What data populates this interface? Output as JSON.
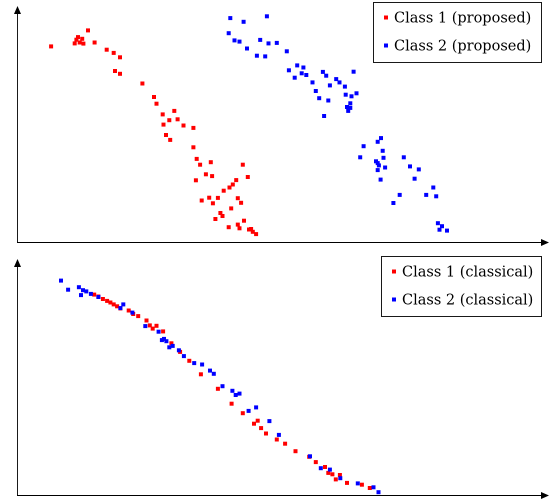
{
  "colors": {
    "class1": "#ff0000",
    "class2": "#0000ff",
    "axis": "#000000"
  },
  "chart_data": [
    {
      "type": "scatter",
      "title": "",
      "xlabel": "",
      "ylabel": "",
      "xlim": [
        0,
        100
      ],
      "ylim": [
        0,
        100
      ],
      "grid": false,
      "legend": "top-right",
      "series": [
        {
          "name": "Class 1 (proposed)",
          "color": "#ff0000",
          "points": [
            [
              5.8,
              84.3
            ],
            [
              11.5,
              85.6
            ],
            [
              11.9,
              87.2
            ],
            [
              12.3,
              88.3
            ],
            [
              12.7,
              86.0
            ],
            [
              13.3,
              87.6
            ],
            [
              13.6,
              85.5
            ],
            [
              14.7,
              91.2
            ],
            [
              16.3,
              86.0
            ],
            [
              19.2,
              82.9
            ],
            [
              20.9,
              81.5
            ],
            [
              21.2,
              73.7
            ],
            [
              22.4,
              72.5
            ],
            [
              22.4,
              79.6
            ],
            [
              27.8,
              68.3
            ],
            [
              30.6,
              62.5
            ],
            [
              31.2,
              59.6
            ],
            [
              32.7,
              55.0
            ],
            [
              32.9,
              50.6
            ],
            [
              33.5,
              46.1
            ],
            [
              34.3,
              52.5
            ],
            [
              34.5,
              44.0
            ],
            [
              35.5,
              56.5
            ],
            [
              36.3,
              52.9
            ],
            [
              37.7,
              50.2
            ],
            [
              40.1,
              49.2
            ],
            [
              40.1,
              40.8
            ],
            [
              40.7,
              26.6
            ],
            [
              40.9,
              35.8
            ],
            [
              41.7,
              33.3
            ],
            [
              42.1,
              17.9
            ],
            [
              43.1,
              29.2
            ],
            [
              43.9,
              19.1
            ],
            [
              44.3,
              34.4
            ],
            [
              44.6,
              28.4
            ],
            [
              44.8,
              16.7
            ],
            [
              45.4,
              9.9
            ],
            [
              46.0,
              19.0
            ],
            [
              46.6,
              12.5
            ],
            [
              47.1,
              11.2
            ],
            [
              47.4,
              22.1
            ],
            [
              48.6,
              6.4
            ],
            [
              48.8,
              23.5
            ],
            [
              49.2,
              14.5
            ],
            [
              49.6,
              24.8
            ],
            [
              50.4,
              26.7
            ],
            [
              50.8,
              18.9
            ],
            [
              50.8,
              7.5
            ],
            [
              51.2,
              5.9
            ],
            [
              51.6,
              16.9
            ],
            [
              52.0,
              33.3
            ],
            [
              52.3,
              9.2
            ],
            [
              53.2,
              28.0
            ],
            [
              53.5,
              5.4
            ],
            [
              54.0,
              5.6
            ],
            [
              54.4,
              4.4
            ],
            [
              55.2,
              3.4
            ]
          ]
        },
        {
          "name": "Class 2 (proposed)",
          "color": "#0000ff",
          "points": [
            [
              48.6,
              90.0
            ],
            [
              49.0,
              96.5
            ],
            [
              50.0,
              86.9
            ],
            [
              51.2,
              86.4
            ],
            [
              52.2,
              94.9
            ],
            [
              53.0,
              83.4
            ],
            [
              55.4,
              80.3
            ],
            [
              56.2,
              87.1
            ],
            [
              57.4,
              80.0
            ],
            [
              57.8,
              97.3
            ],
            [
              58.2,
              85.6
            ],
            [
              60.2,
              85.8
            ],
            [
              62.6,
              82.2
            ],
            [
              63.1,
              74.0
            ],
            [
              64.5,
              70.8
            ],
            [
              65.1,
              76.1
            ],
            [
              66.2,
              72.7
            ],
            [
              66.6,
              75.2
            ],
            [
              67.3,
              72.0
            ],
            [
              68.8,
              68.8
            ],
            [
              69.6,
              65.1
            ],
            [
              70.4,
              62.0
            ],
            [
              71.3,
              73.3
            ],
            [
              71.6,
              54.3
            ],
            [
              72.1,
              71.7
            ],
            [
              72.6,
              61.0
            ],
            [
              73.0,
              67.5
            ],
            [
              74.5,
              70.2
            ],
            [
              75.3,
              68.8
            ],
            [
              76.6,
              67.0
            ],
            [
              76.8,
              63.5
            ],
            [
              77.1,
              58.2
            ],
            [
              77.4,
              56.5
            ],
            [
              77.9,
              59.8
            ],
            [
              77.9,
              57.8
            ],
            [
              78.2,
              62.8
            ],
            [
              78.7,
              73.4
            ],
            [
              79.4,
              64.1
            ],
            [
              80.3,
              36.5
            ],
            [
              81.1,
              41.3
            ],
            [
              84.1,
              34.8
            ],
            [
              84.5,
              34.0
            ],
            [
              84.5,
              31.0
            ],
            [
              84.8,
              33.0
            ],
            [
              85.2,
              26.9
            ],
            [
              84.5,
              43.2
            ],
            [
              85.3,
              44.8
            ],
            [
              85.7,
              39.3
            ],
            [
              85.9,
              36.3
            ],
            [
              86.3,
              32.1
            ],
            [
              88.3,
              16.8
            ],
            [
              89.8,
              20.3
            ],
            [
              90.8,
              36.5
            ],
            [
              92.3,
              32.6
            ],
            [
              93.4,
              27.3
            ],
            [
              94.4,
              31.3
            ],
            [
              96.2,
              20.3
            ],
            [
              97.9,
              23.5
            ],
            [
              98.6,
              19.7
            ],
            [
              99.0,
              8.1
            ],
            [
              99.4,
              5.3
            ],
            [
              100.0,
              6.8
            ],
            [
              101.2,
              4.9
            ]
          ]
        }
      ]
    },
    {
      "type": "scatter",
      "title": "",
      "xlabel": "",
      "ylabel": "",
      "xlim": [
        0,
        100
      ],
      "ylim": [
        0,
        100
      ],
      "grid": false,
      "legend": "top-right",
      "series": [
        {
          "name": "Class 1 (classical)",
          "color": "#ff0000",
          "points": [
            [
              16.2,
              86.0
            ],
            [
              17.2,
              85.2
            ],
            [
              18.3,
              84.1
            ],
            [
              19.3,
              83.3
            ],
            [
              20.1,
              82.6
            ],
            [
              20.9,
              81.8
            ],
            [
              21.7,
              81.0
            ],
            [
              22.5,
              80.1
            ],
            [
              24.5,
              79.2
            ],
            [
              25.6,
              77.7
            ],
            [
              26.8,
              76.8
            ],
            [
              28.8,
              74.9
            ],
            [
              29.6,
              72.8
            ],
            [
              30.3,
              71.4
            ],
            [
              31.2,
              72.6
            ],
            [
              32.8,
              70.2
            ],
            [
              34.8,
              65.1
            ],
            [
              36.9,
              61.4
            ],
            [
              39.1,
              57.6
            ],
            [
              41.9,
              51.8
            ],
            [
              46.0,
              45.6
            ],
            [
              49.3,
              39.2
            ],
            [
              52.0,
              35.1
            ],
            [
              54.7,
              30.6
            ],
            [
              55.6,
              31.9
            ],
            [
              56.4,
              28.7
            ],
            [
              57.6,
              26.4
            ],
            [
              60.2,
              23.8
            ],
            [
              62.2,
              22.0
            ],
            [
              64.7,
              18.8
            ],
            [
              68.0,
              16.4
            ],
            [
              69.6,
              14.1
            ],
            [
              71.8,
              12.0
            ],
            [
              72.6,
              9.5
            ],
            [
              73.6,
              8.9
            ],
            [
              74.4,
              6.7
            ],
            [
              75.4,
              8.6
            ],
            [
              77.1,
              5.2
            ],
            [
              80.7,
              4.4
            ],
            [
              82.6,
              3.0
            ]
          ]
        },
        {
          "name": "Class 2 (classical)",
          "color": "#0000ff",
          "points": [
            [
              8.2,
              92.0
            ],
            [
              9.9,
              88.1
            ],
            [
              12.5,
              89.2
            ],
            [
              13.0,
              85.8
            ],
            [
              13.5,
              87.9
            ],
            [
              14.3,
              87.4
            ],
            [
              15.4,
              86.3
            ],
            [
              17.2,
              85.0
            ],
            [
              22.5,
              80.2
            ],
            [
              23.2,
              81.8
            ],
            [
              25.4,
              78.3
            ],
            [
              28.5,
              72.5
            ],
            [
              31.7,
              70.1
            ],
            [
              32.5,
              66.5
            ],
            [
              33.0,
              67.0
            ],
            [
              33.6,
              66.0
            ],
            [
              34.3,
              63.4
            ],
            [
              35.1,
              64.0
            ],
            [
              36.6,
              62.1
            ],
            [
              37.8,
              59.6
            ],
            [
              40.3,
              56.6
            ],
            [
              42.2,
              56.0
            ],
            [
              44.1,
              53.4
            ],
            [
              45.0,
              52.0
            ],
            [
              47.1,
              46.7
            ],
            [
              49.5,
              44.7
            ],
            [
              50.3,
              42.9
            ],
            [
              51.2,
              43.5
            ],
            [
              53.4,
              36.1
            ],
            [
              55.2,
              37.6
            ],
            [
              58.4,
              31.7
            ],
            [
              60.7,
              25.8
            ],
            [
              68.2,
              16.6
            ],
            [
              70.8,
              11.5
            ],
            [
              73.0,
              10.9
            ],
            [
              75.5,
              7.2
            ],
            [
              79.7,
              5.0
            ],
            [
              83.5,
              3.3
            ],
            [
              84.7,
              1.2
            ]
          ]
        }
      ]
    }
  ]
}
